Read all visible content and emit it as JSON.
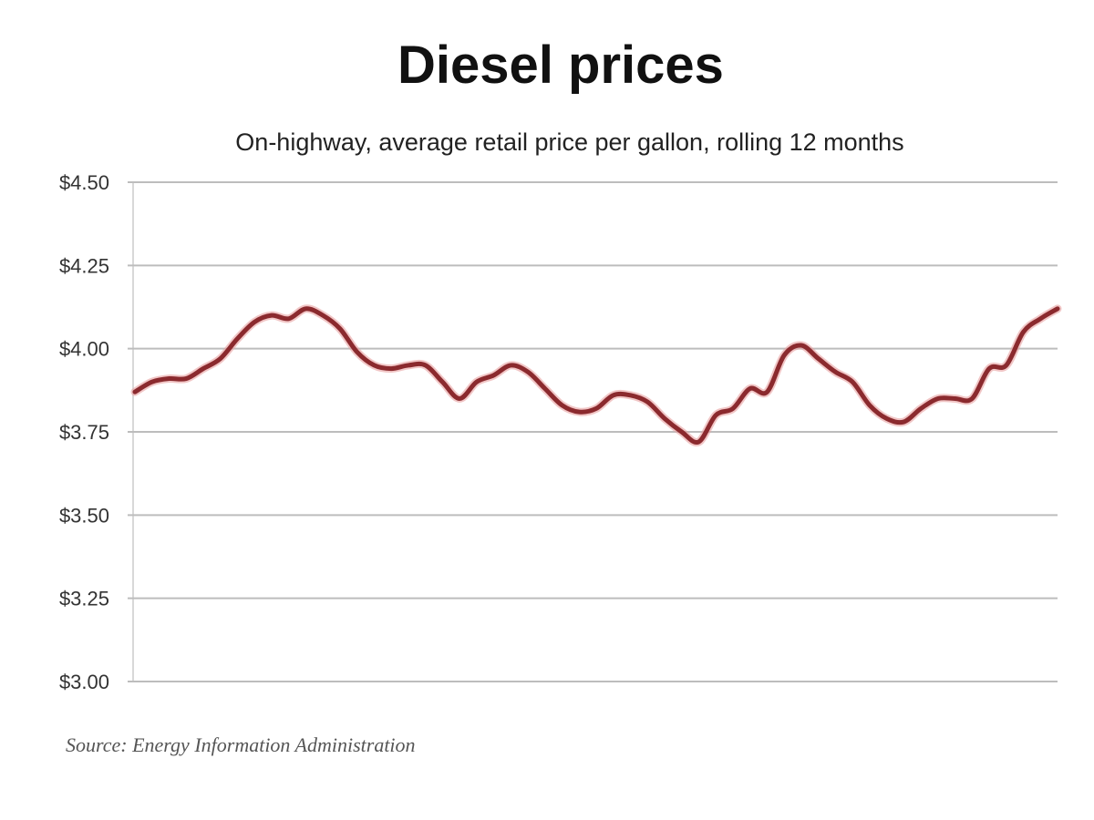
{
  "chart_data": {
    "type": "line",
    "title": "Diesel prices",
    "subtitle": "On-highway, average retail price per gallon, rolling 12 months",
    "source": "Source: Energy Information Administration",
    "xlabel": "",
    "ylabel": "",
    "ylim": [
      3.0,
      4.5
    ],
    "yticks": [
      "$3.00",
      "$3.25",
      "$3.50",
      "$3.75",
      "$4.00",
      "$4.25",
      "$4.50"
    ],
    "ytick_values": [
      3.0,
      3.25,
      3.5,
      3.75,
      4.0,
      4.25,
      4.5
    ],
    "grid": true,
    "line_color": "#8b2a2e",
    "values": [
      3.87,
      3.9,
      3.91,
      3.91,
      3.94,
      3.97,
      4.03,
      4.08,
      4.1,
      4.09,
      4.12,
      4.1,
      4.06,
      3.99,
      3.95,
      3.94,
      3.95,
      3.95,
      3.9,
      3.85,
      3.9,
      3.92,
      3.95,
      3.93,
      3.88,
      3.83,
      3.81,
      3.82,
      3.86,
      3.86,
      3.84,
      3.79,
      3.75,
      3.72,
      3.8,
      3.82,
      3.88,
      3.87,
      3.98,
      4.01,
      3.97,
      3.93,
      3.9,
      3.83,
      3.79,
      3.78,
      3.82,
      3.85,
      3.85,
      3.85,
      3.94,
      3.95,
      4.05,
      4.09,
      4.12
    ]
  }
}
